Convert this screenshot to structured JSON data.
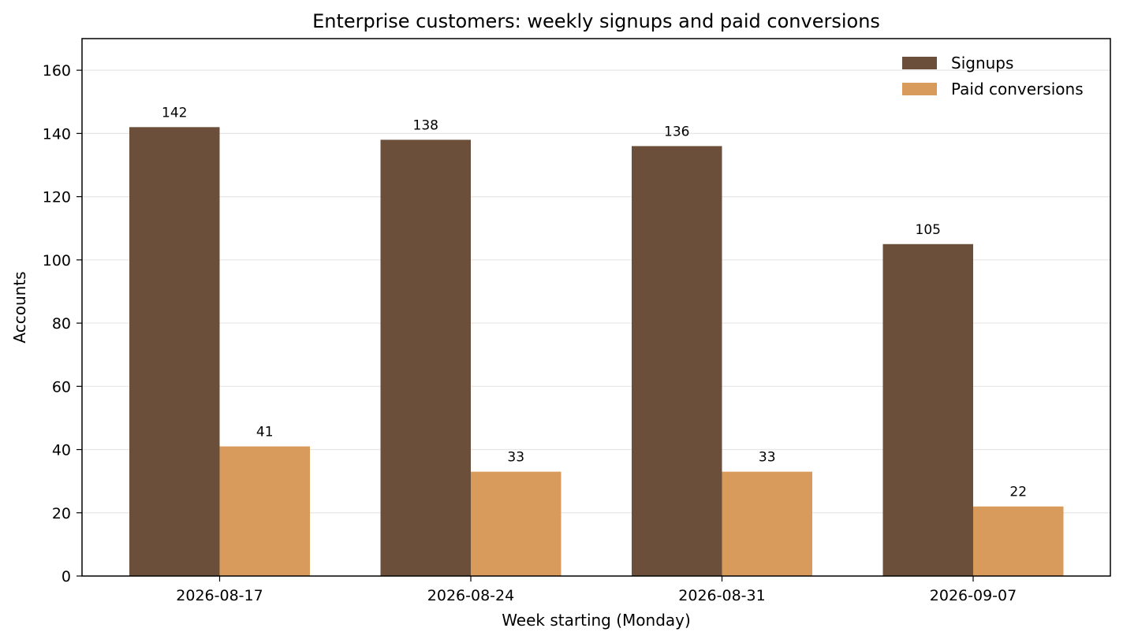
{
  "chart_data": {
    "type": "bar",
    "title": "Enterprise customers: weekly signups and paid conversions",
    "xlabel": "Week starting (Monday)",
    "ylabel": "Accounts",
    "categories": [
      "2026-08-17",
      "2026-08-24",
      "2026-08-31",
      "2026-09-07"
    ],
    "series": [
      {
        "name": "Signups",
        "values": [
          142,
          138,
          136,
          105
        ],
        "color": "#6b4f3a"
      },
      {
        "name": "Paid conversions",
        "values": [
          41,
          33,
          33,
          22
        ],
        "color": "#d89b5b"
      }
    ],
    "ylim": [
      0,
      170
    ],
    "yticks": [
      0,
      20,
      40,
      60,
      80,
      100,
      120,
      140,
      160
    ],
    "grid": "horizontal",
    "legend": "top-right"
  }
}
